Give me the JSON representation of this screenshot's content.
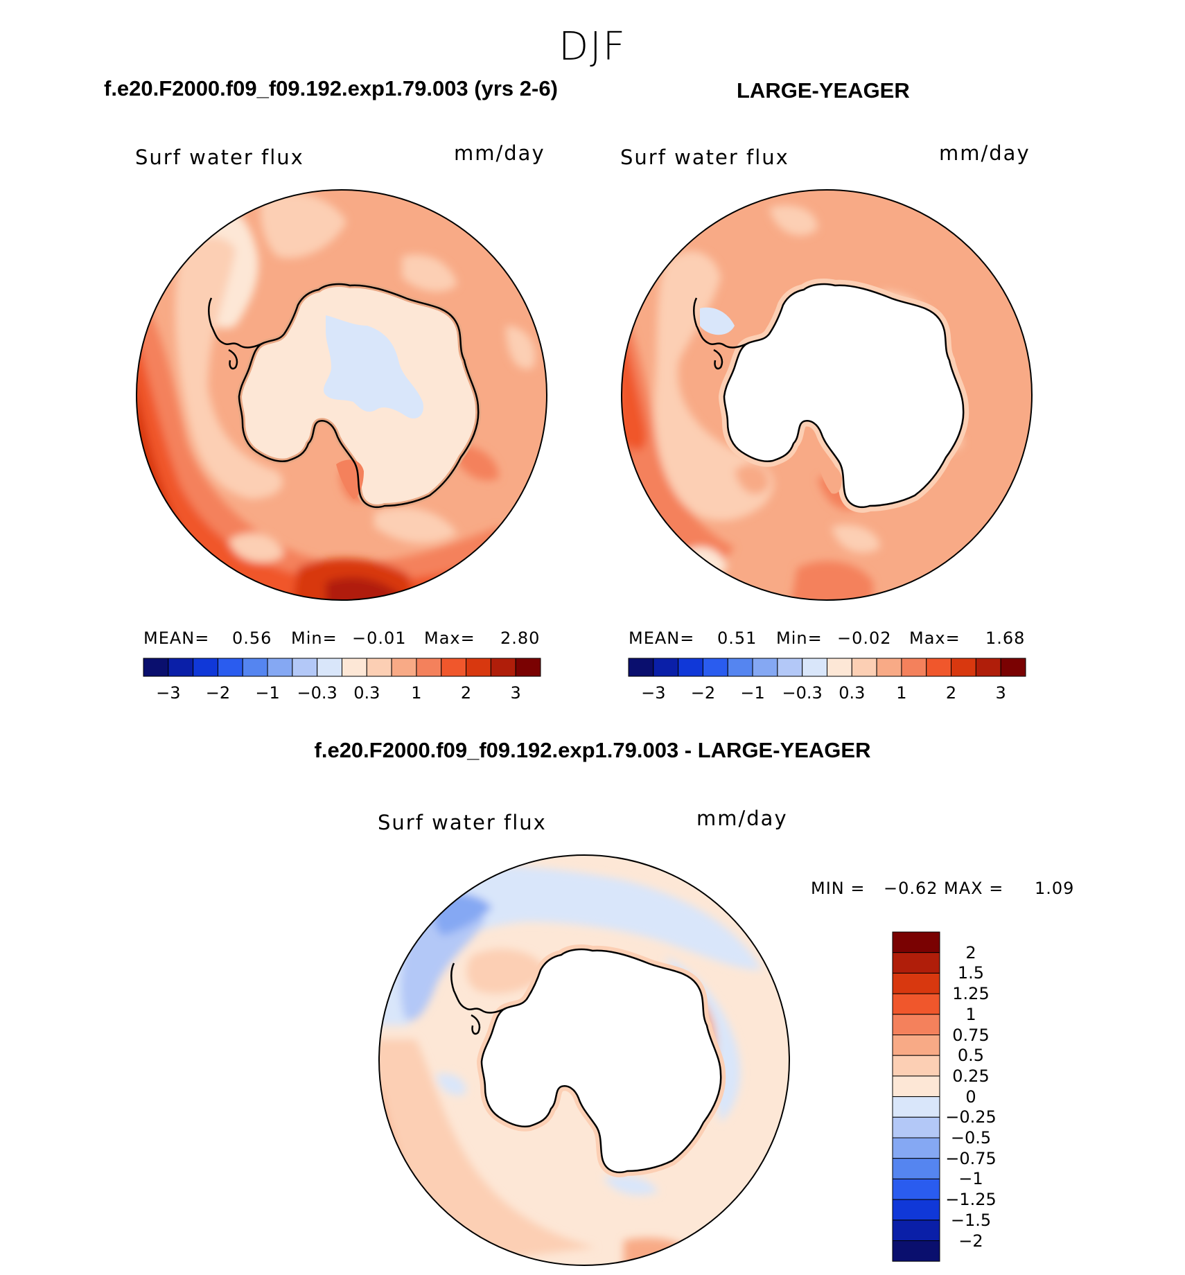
{
  "season": "DJF",
  "panels": [
    {
      "title": "f.e20.F2000.f09_f09.192.exp1.79.003 (yrs 2-6)",
      "variable": "Surf  water  flux",
      "units": "mm/day",
      "stats": {
        "mean_label": "MEAN=",
        "mean": "0.56",
        "min_label": "Min=",
        "min": "−0.01",
        "max_label": "Max=",
        "max": "2.80"
      }
    },
    {
      "title": "LARGE-YEAGER",
      "variable": "Surf  water  flux",
      "units": "mm/day",
      "stats": {
        "mean_label": "MEAN=",
        "mean": "0.51",
        "min_label": "Min=",
        "min": "−0.02",
        "max_label": "Max=",
        "max": "1.68"
      }
    },
    {
      "title": "f.e20.F2000.f09_f09.192.exp1.79.003 - LARGE-YEAGER",
      "variable": "Surf  water  flux",
      "units": "mm/day",
      "stats": {
        "min_label": "MIN  =",
        "min": "−0.62",
        "max_label": "MAX  =",
        "max": "1.09"
      }
    }
  ],
  "horizontal_colorbar": {
    "colors": [
      "#0a0f6e",
      "#0a1fa8",
      "#1038d8",
      "#2a5cef",
      "#5585f0",
      "#85a8f3",
      "#b3c8f7",
      "#d9e6fa",
      "#fde7d6",
      "#fccfb4",
      "#f8aa86",
      "#f4815c",
      "#f0572c",
      "#d8380f",
      "#b01e0a",
      "#7a0202"
    ],
    "tick_labels": [
      "−3",
      "−2",
      "−1",
      "−0.3",
      "0.3",
      "1",
      "2",
      "3"
    ]
  },
  "vertical_colorbar": {
    "colors": [
      "#7a0202",
      "#b01e0a",
      "#d8380f",
      "#f0572c",
      "#f4815c",
      "#f8aa86",
      "#fccfb4",
      "#fde7d6",
      "#d9e6fa",
      "#b3c8f7",
      "#85a8f3",
      "#5585f0",
      "#2a5cef",
      "#1038d8",
      "#0a1fa8",
      "#0a0f6e"
    ],
    "tick_labels": [
      "2",
      "1.5",
      "1.25",
      "1",
      "0.75",
      "0.5",
      "0.25",
      "0",
      "−0.25",
      "−0.5",
      "−0.75",
      "−1",
      "−1.25",
      "−1.5",
      "−2"
    ]
  },
  "colors": {
    "land": "#ffffff",
    "coast": "#000000"
  }
}
